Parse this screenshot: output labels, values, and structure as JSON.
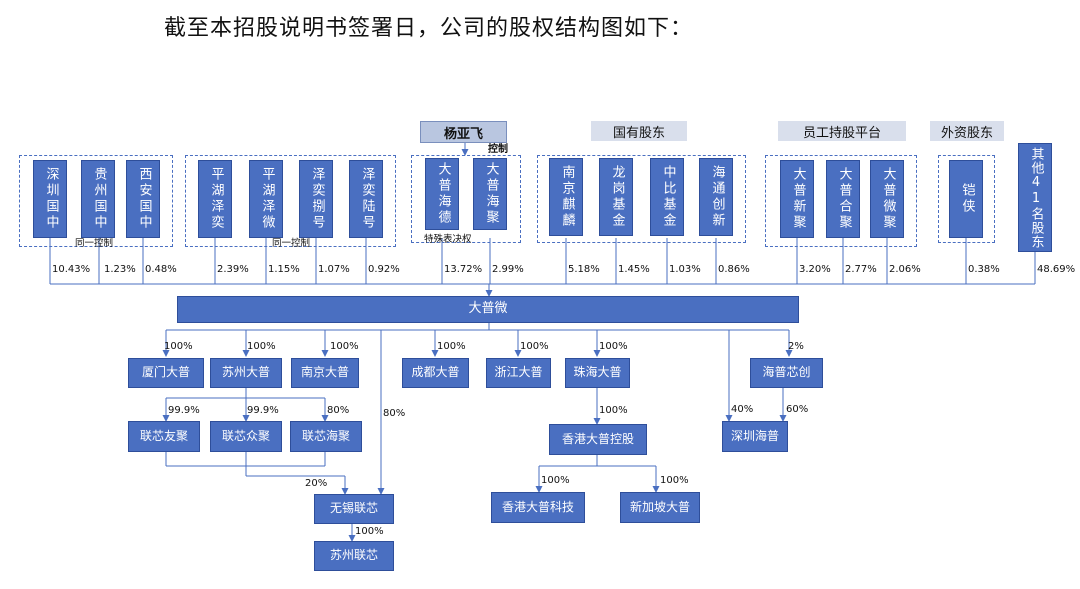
{
  "intro": "截至本招股说明书签署日，公司的股权结构图如下：",
  "headers": {
    "founder": "杨亚飞",
    "state_owned": "国有股东",
    "employee": "员工持股平台",
    "foreign": "外资股东"
  },
  "labels": {
    "same_control": "同一控制",
    "control": "控制",
    "special_voting": "特殊表决权"
  },
  "shareholders": [
    {
      "name": "深圳国中",
      "pct": "10.43%"
    },
    {
      "name": "贵州国中",
      "pct": "1.23%"
    },
    {
      "name": "西安国中",
      "pct": "0.48%"
    },
    {
      "name": "平湖泽奕",
      "pct": "2.39%"
    },
    {
      "name": "平湖泽微",
      "pct": "1.15%"
    },
    {
      "name": "泽奕捌号",
      "pct": "1.07%"
    },
    {
      "name": "泽奕陆号",
      "pct": "0.92%"
    },
    {
      "name": "大普海德",
      "pct": "13.72%"
    },
    {
      "name": "大普海聚",
      "pct": "2.99%"
    },
    {
      "name": "南京麒麟",
      "pct": "5.18%"
    },
    {
      "name": "龙岗基金",
      "pct": "1.45%"
    },
    {
      "name": "中比基金",
      "pct": "1.03%"
    },
    {
      "name": "海通创新",
      "pct": "0.86%"
    },
    {
      "name": "大普新聚",
      "pct": "3.20%"
    },
    {
      "name": "大普合聚",
      "pct": "2.77%"
    },
    {
      "name": "大普微聚",
      "pct": "2.06%"
    },
    {
      "name": "铠侠",
      "pct": "0.38%"
    },
    {
      "name": "其他41名股东",
      "pct": "48.69%"
    }
  ],
  "company": "大普微",
  "subsidiaries": {
    "xiamen": {
      "name": "厦门大普",
      "pct": "100%"
    },
    "suzhou": {
      "name": "苏州大普",
      "pct": "100%"
    },
    "nanjing": {
      "name": "南京大普",
      "pct": "100%"
    },
    "chengdu": {
      "name": "成都大普",
      "pct": "100%"
    },
    "zhejiang": {
      "name": "浙江大普",
      "pct": "100%"
    },
    "zhuhai": {
      "name": "珠海大普",
      "pct": "100%"
    },
    "haipu": {
      "name": "海普芯创",
      "pct": "2%"
    },
    "lxyouju": {
      "name": "联芯友聚",
      "pct": "99.9%"
    },
    "lxzhongju": {
      "name": "联芯众聚",
      "pct": "99.9%"
    },
    "lxhaiju": {
      "name": "联芯海聚",
      "pct": "80%"
    },
    "wuxi": {
      "name": "无锡联芯",
      "pct_from_company": "80%",
      "pct_from_group": "20%"
    },
    "suzhoulx": {
      "name": "苏州联芯",
      "pct": "100%"
    },
    "hk_holding": {
      "name": "香港大普控股",
      "pct": "100%"
    },
    "hk_tech": {
      "name": "香港大普科技",
      "pct": "100%"
    },
    "singapore": {
      "name": "新加坡大普",
      "pct": "100%"
    },
    "shenzhen": {
      "name": "深圳海普",
      "pct_from_company": "40%",
      "pct_from_haipu": "60%"
    }
  }
}
